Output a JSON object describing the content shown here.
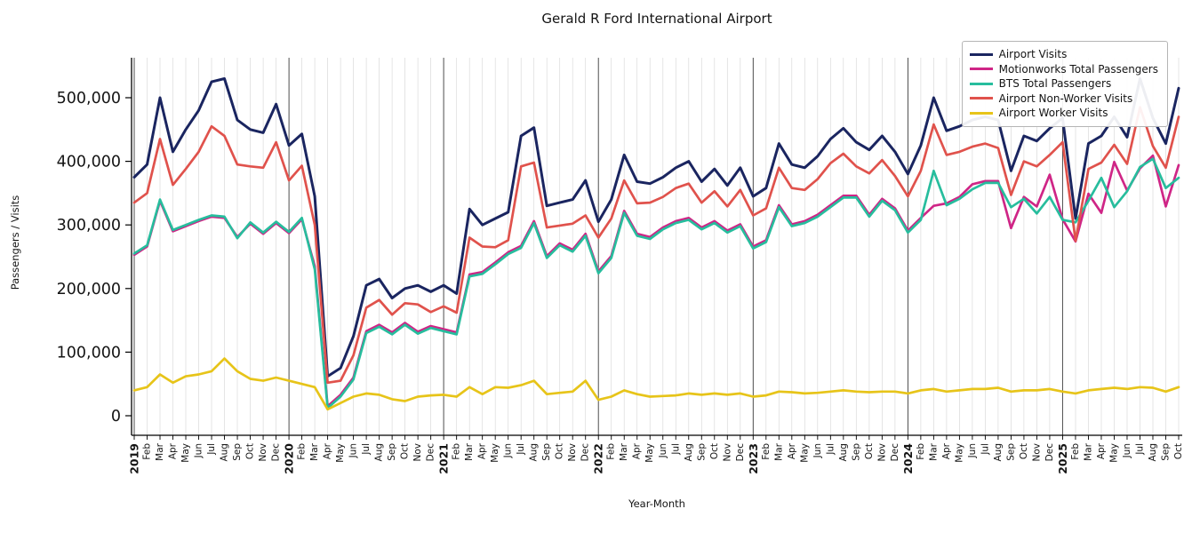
{
  "chart_data": {
    "type": "line",
    "title": "Gerald R Ford International Airport",
    "xlabel": "Year-Month",
    "ylabel": "Passengers / Visits",
    "ylim": [
      -30000,
      563000
    ],
    "grid": "vertical gridline per month, darker line at each January / year boundary",
    "legend_position": "upper right",
    "y_ticks": [
      {
        "value": 0,
        "label": "0"
      },
      {
        "value": 100000,
        "label": "100,000"
      },
      {
        "value": 200000,
        "label": "200,000"
      },
      {
        "value": 300000,
        "label": "300,000"
      },
      {
        "value": 400000,
        "label": "400,000"
      },
      {
        "value": 500000,
        "label": "500,000"
      }
    ],
    "x_tick_labels": [
      "2019",
      "Feb",
      "Mar",
      "Apr",
      "May",
      "Jun",
      "Jul",
      "Aug",
      "Sep",
      "Oct",
      "Nov",
      "Dec",
      "2020",
      "Feb",
      "Mar",
      "Apr",
      "May",
      "Jun",
      "Jul",
      "Aug",
      "Sep",
      "Oct",
      "Nov",
      "Dec",
      "2021",
      "Feb",
      "Mar",
      "Apr",
      "May",
      "Jun",
      "Jul",
      "Aug",
      "Sep",
      "Oct",
      "Nov",
      "Dec",
      "2022",
      "Feb",
      "Mar",
      "Apr",
      "May",
      "Jun",
      "Jul",
      "Aug",
      "Sep",
      "Oct",
      "Nov",
      "Dec",
      "2023",
      "Feb",
      "Mar",
      "Apr",
      "May",
      "Jun",
      "Jul",
      "Aug",
      "Sep",
      "Oct",
      "Nov",
      "Dec",
      "2024",
      "Feb",
      "Mar",
      "Apr",
      "May",
      "Jun",
      "Jul",
      "Aug",
      "Sep",
      "Oct",
      "Nov",
      "Dec",
      "2025",
      "Feb",
      "Mar",
      "Apr",
      "May",
      "Jun",
      "Jul",
      "Aug",
      "Sep",
      "Oct"
    ],
    "series": [
      {
        "name": "Airport Visits",
        "color": "#1a2560",
        "values": [
          375000,
          395000,
          500000,
          415000,
          450000,
          480000,
          525000,
          530000,
          465000,
          450000,
          445000,
          490000,
          425000,
          443000,
          345000,
          62000,
          75000,
          125000,
          205000,
          215000,
          185000,
          200000,
          205000,
          195000,
          205000,
          192000,
          325000,
          300000,
          310000,
          320000,
          440000,
          453000,
          330000,
          335000,
          340000,
          370000,
          305000,
          340000,
          410000,
          368000,
          365000,
          375000,
          390000,
          400000,
          368000,
          388000,
          362000,
          390000,
          345000,
          358000,
          428000,
          395000,
          390000,
          408000,
          435000,
          452000,
          430000,
          418000,
          440000,
          415000,
          380000,
          425000,
          500000,
          448000,
          455000,
          465000,
          470000,
          465000,
          385000,
          440000,
          432000,
          452000,
          468000,
          310000,
          428000,
          440000,
          470000,
          438000,
          530000,
          468000,
          428000,
          515000
        ]
      },
      {
        "name": "Motionworks Total Passengers",
        "color": "#cf2586",
        "values": [
          253000,
          266000,
          338000,
          290000,
          298000,
          306000,
          313000,
          311000,
          281000,
          302000,
          286000,
          303000,
          287000,
          309000,
          235000,
          15000,
          33000,
          60000,
          133000,
          143000,
          131000,
          146000,
          132000,
          141000,
          136000,
          131000,
          222000,
          226000,
          241000,
          257000,
          267000,
          306000,
          251000,
          271000,
          261000,
          286000,
          227000,
          251000,
          322000,
          286000,
          281000,
          296000,
          306000,
          311000,
          296000,
          306000,
          291000,
          301000,
          266000,
          276000,
          331000,
          301000,
          306000,
          316000,
          331000,
          346000,
          346000,
          316000,
          341000,
          326000,
          291000,
          311000,
          330000,
          334000,
          344000,
          364000,
          369000,
          369000,
          295000,
          344000,
          329000,
          379000,
          309000,
          274000,
          349000,
          319000,
          399000,
          354000,
          389000,
          409000,
          329000,
          394000
        ]
      },
      {
        "name": "BTS Total Passengers",
        "color": "#27bd9d",
        "values": [
          255000,
          268000,
          340000,
          292000,
          300000,
          308000,
          315000,
          313000,
          279000,
          304000,
          288000,
          305000,
          289000,
          311000,
          230000,
          12000,
          30000,
          57000,
          130000,
          140000,
          128000,
          143000,
          129000,
          138000,
          133000,
          128000,
          219000,
          223000,
          238000,
          254000,
          264000,
          303000,
          248000,
          268000,
          258000,
          283000,
          224000,
          248000,
          319000,
          283000,
          278000,
          293000,
          303000,
          308000,
          293000,
          303000,
          288000,
          298000,
          263000,
          273000,
          328000,
          298000,
          303000,
          313000,
          328000,
          343000,
          343000,
          313000,
          338000,
          323000,
          288000,
          308000,
          385000,
          331000,
          341000,
          356000,
          366000,
          366000,
          328000,
          341000,
          318000,
          344000,
          308000,
          304000,
          338000,
          374000,
          328000,
          353000,
          391000,
          404000,
          358000,
          374000
        ]
      },
      {
        "name": "Airport Non-Worker Visits",
        "color": "#e0524c",
        "values": [
          335000,
          350000,
          435000,
          363000,
          388000,
          415000,
          455000,
          440000,
          395000,
          392000,
          390000,
          430000,
          370000,
          393000,
          300000,
          52000,
          55000,
          95000,
          170000,
          182000,
          159000,
          177000,
          175000,
          163000,
          172000,
          162000,
          280000,
          266000,
          265000,
          276000,
          392000,
          398000,
          296000,
          299000,
          302000,
          315000,
          280000,
          310000,
          370000,
          334000,
          335000,
          344000,
          358000,
          365000,
          335000,
          353000,
          329000,
          355000,
          315000,
          326000,
          390000,
          358000,
          355000,
          372000,
          397000,
          412000,
          392000,
          381000,
          402000,
          377000,
          345000,
          385000,
          458000,
          410000,
          415000,
          423000,
          428000,
          421000,
          347000,
          400000,
          392000,
          410000,
          430000,
          275000,
          388000,
          398000,
          426000,
          396000,
          485000,
          424000,
          390000,
          470000
        ]
      },
      {
        "name": "Airport Worker Visits",
        "color": "#e7c419",
        "values": [
          40000,
          45000,
          65000,
          52000,
          62000,
          65000,
          70000,
          90000,
          70000,
          58000,
          55000,
          60000,
          55000,
          50000,
          45000,
          10000,
          20000,
          30000,
          35000,
          33000,
          26000,
          23000,
          30000,
          32000,
          33000,
          30000,
          45000,
          34000,
          45000,
          44000,
          48000,
          55000,
          34000,
          36000,
          38000,
          55000,
          25000,
          30000,
          40000,
          34000,
          30000,
          31000,
          32000,
          35000,
          33000,
          35000,
          33000,
          35000,
          30000,
          32000,
          38000,
          37000,
          35000,
          36000,
          38000,
          40000,
          38000,
          37000,
          38000,
          38000,
          35000,
          40000,
          42000,
          38000,
          40000,
          42000,
          42000,
          44000,
          38000,
          40000,
          40000,
          42000,
          38000,
          35000,
          40000,
          42000,
          44000,
          42000,
          45000,
          44000,
          38000,
          45000
        ]
      }
    ]
  }
}
